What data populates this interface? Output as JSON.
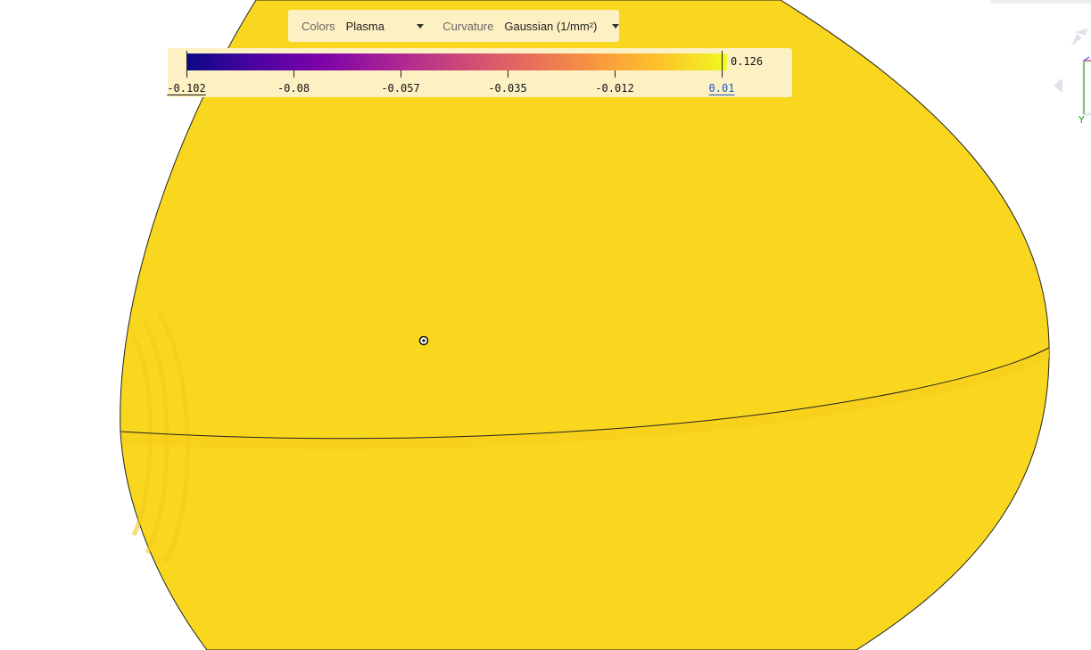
{
  "toolbar": {
    "colors_label": "Colors",
    "colors_value": "Plasma",
    "curvature_label": "Curvature",
    "curvature_value": "Gaussian (1/mm²)"
  },
  "legend": {
    "min": "-0.102",
    "ticks": [
      "-0.08",
      "-0.057",
      "-0.035",
      "-0.012"
    ],
    "range_max": "0.01",
    "max": "0.126",
    "colormap": [
      "#0d0887",
      "#7d03a8",
      "#cb4679",
      "#f89441",
      "#f0f921"
    ]
  },
  "surface": {
    "color": "#f9d71e",
    "edge_color": "#222222"
  },
  "viewcube": {
    "y_axis_label": "Y",
    "x_color": "#e03030",
    "y_color": "#20a020",
    "z_color": "#3030d0"
  }
}
